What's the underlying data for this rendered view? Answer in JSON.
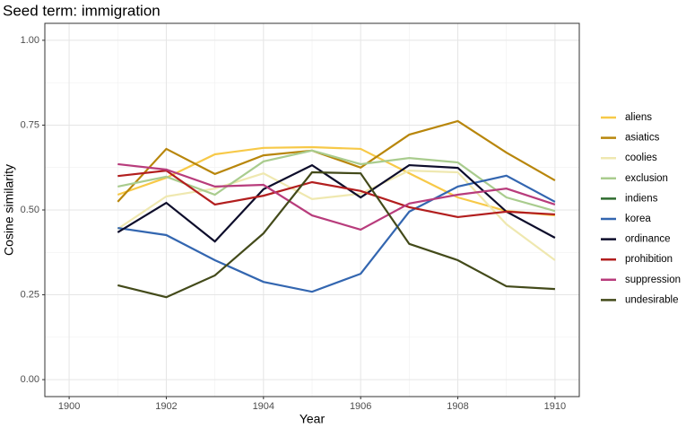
{
  "chart_data": {
    "type": "line",
    "title": "Seed term: immigration",
    "xlabel": "Year",
    "ylabel": "Cosine similarity",
    "x": [
      1901,
      1902,
      1903,
      1904,
      1905,
      1906,
      1907,
      1908,
      1909,
      1910
    ],
    "xlim": [
      1899.5,
      1910.5
    ],
    "xticks": [
      1900,
      1902,
      1904,
      1906,
      1908,
      1910
    ],
    "ylim": [
      -0.05,
      1.05
    ],
    "yticks": [
      {
        "value": 0,
        "label": "0.00"
      },
      {
        "value": 0.25,
        "label": "0.25"
      },
      {
        "value": 0.5,
        "label": "0.50"
      },
      {
        "value": 0.75,
        "label": "0.75"
      },
      {
        "value": 1,
        "label": "1.00"
      }
    ],
    "grid": true,
    "legend": "right",
    "series": [
      {
        "name": "aliens",
        "color": "#f7c948",
        "values": [
          0.545,
          0.595,
          0.664,
          0.683,
          0.685,
          0.68,
          0.608,
          0.537,
          0.497,
          0.484
        ]
      },
      {
        "name": "asiatics",
        "color": "#b8860b",
        "values": [
          0.524,
          0.68,
          0.606,
          0.661,
          0.675,
          0.625,
          0.722,
          0.762,
          0.669,
          0.587
        ]
      },
      {
        "name": "coolies",
        "color": "#efe8b0",
        "values": [
          0.444,
          0.54,
          0.563,
          0.608,
          0.532,
          0.548,
          0.616,
          0.611,
          0.458,
          0.352
        ]
      },
      {
        "name": "exclusion",
        "color": "#a9cc8e",
        "values": [
          0.569,
          0.598,
          0.545,
          0.643,
          0.675,
          0.635,
          0.653,
          0.64,
          0.537,
          0.497
        ]
      },
      {
        "name": "indiens",
        "color": "#2e6b2e",
        "values": [
          null,
          null,
          null,
          null,
          null,
          null,
          null,
          null,
          null,
          null
        ]
      },
      {
        "name": "korea",
        "color": "#3366b0",
        "values": [
          0.447,
          0.426,
          0.352,
          0.288,
          0.259,
          0.312,
          0.495,
          0.569,
          0.601,
          0.524
        ]
      },
      {
        "name": "ordinance",
        "color": "#0d0d2b",
        "values": [
          0.434,
          0.521,
          0.407,
          0.561,
          0.632,
          0.537,
          0.632,
          0.624,
          0.495,
          0.418
        ]
      },
      {
        "name": "prohibition",
        "color": "#b21e1e",
        "values": [
          0.6,
          0.616,
          0.516,
          0.542,
          0.582,
          0.556,
          0.508,
          0.479,
          0.495,
          0.487
        ]
      },
      {
        "name": "suppression",
        "color": "#b83c7c",
        "values": [
          0.635,
          0.619,
          0.569,
          0.574,
          0.484,
          0.442,
          0.519,
          0.545,
          0.563,
          0.516
        ]
      },
      {
        "name": "undesirable",
        "color": "#434a1a",
        "values": [
          0.278,
          0.243,
          0.307,
          0.431,
          0.611,
          0.608,
          0.4,
          0.352,
          0.275,
          0.267
        ]
      }
    ]
  }
}
